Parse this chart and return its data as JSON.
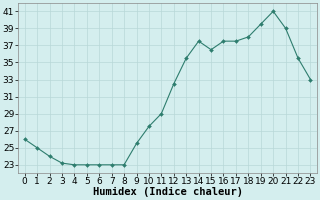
{
  "x": [
    0,
    1,
    2,
    3,
    4,
    5,
    6,
    7,
    8,
    9,
    10,
    11,
    12,
    13,
    14,
    15,
    16,
    17,
    18,
    19,
    20,
    21,
    22,
    23
  ],
  "y": [
    26,
    25,
    24,
    23.2,
    23,
    23,
    23,
    23,
    23,
    25.5,
    27.5,
    29,
    32.5,
    35.5,
    37.5,
    36.5,
    37.5,
    37.5,
    38,
    39.5,
    41,
    39,
    35.5,
    33
  ],
  "line_color": "#2e7d6e",
  "marker_color": "#2e7d6e",
  "bg_color": "#d4eeee",
  "grid_color": "#b8d8d8",
  "xlabel": "Humidex (Indice chaleur)",
  "ylabel_ticks": [
    23,
    25,
    27,
    29,
    31,
    33,
    35,
    37,
    39,
    41
  ],
  "ylim": [
    22.0,
    42.0
  ],
  "xlim": [
    -0.5,
    23.5
  ],
  "font_size": 6.5
}
